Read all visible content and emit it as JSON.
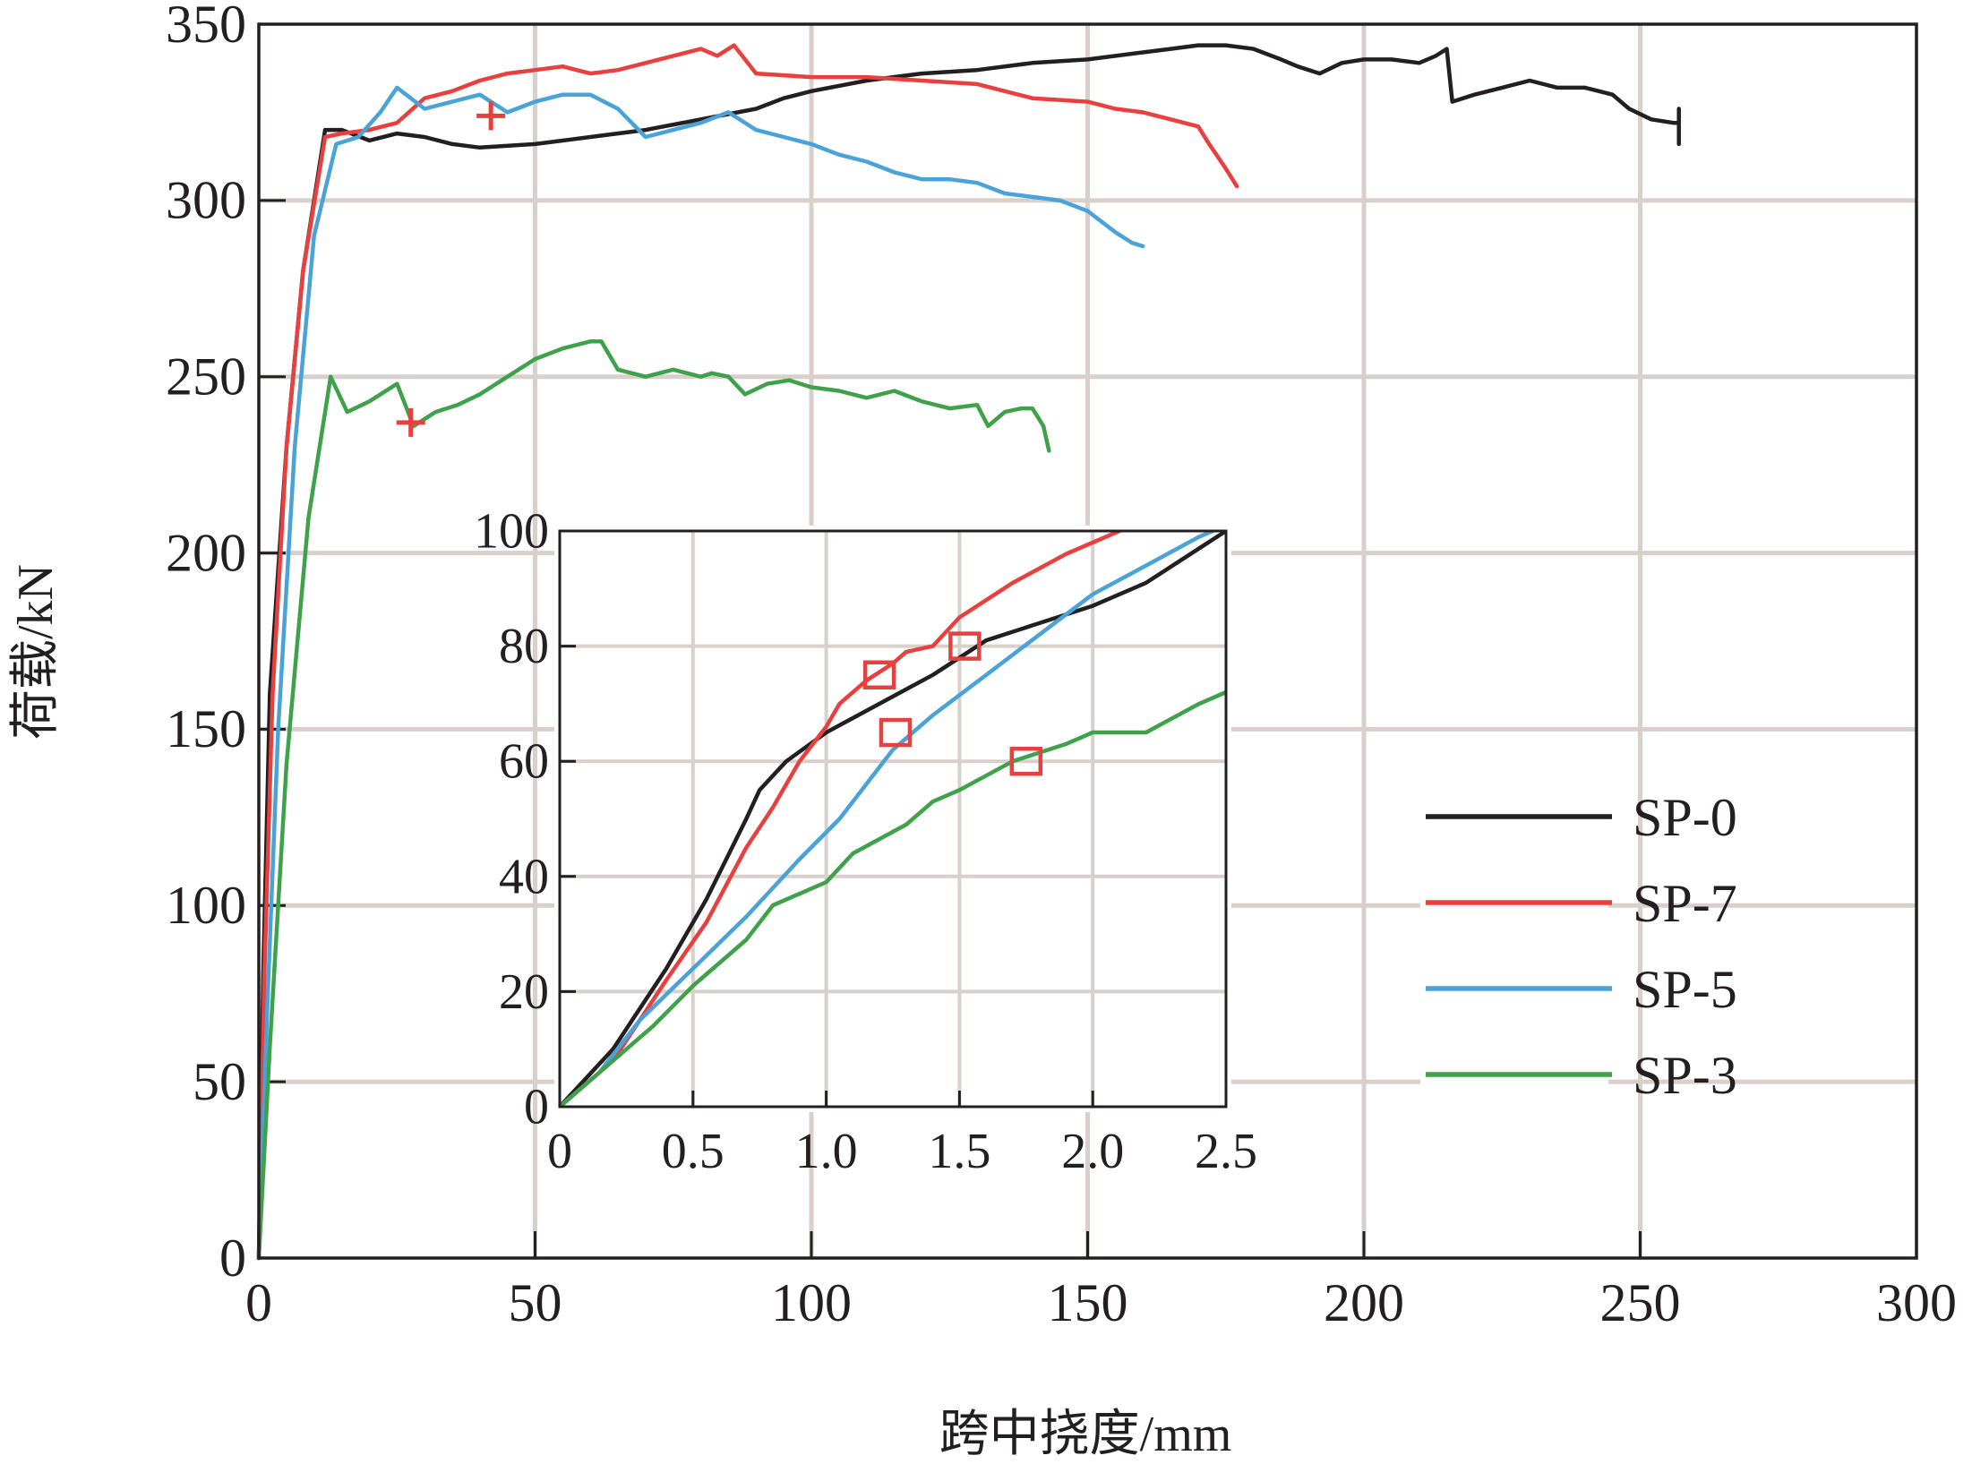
{
  "colors": {
    "SP-0": "#231f20",
    "SP-7": "#e8403f",
    "SP-5": "#4aa3d8",
    "SP-3": "#3fa24a",
    "grid": "#d9d0cc",
    "marker": "#e8403f",
    "axis": "#231f20"
  },
  "chart_data": [
    {
      "type": "line",
      "xlabel": "跨中挠度/mm",
      "ylabel": "荷载/kN",
      "xlim": [
        0,
        300
      ],
      "ylim": [
        0,
        350
      ],
      "xticks": [
        0,
        50,
        100,
        150,
        200,
        250,
        300
      ],
      "yticks": [
        0,
        50,
        100,
        150,
        200,
        250,
        300,
        350
      ],
      "x_tick_labels": [
        "0",
        "50",
        "100",
        "150",
        "200",
        "250",
        "300"
      ],
      "y_tick_labels": [
        "0",
        "50",
        "100",
        "150",
        "200",
        "250",
        "300",
        "350"
      ],
      "grid": true,
      "legend_position": "bottom-right",
      "series": [
        {
          "name": "SP-0",
          "points": [
            [
              0,
              0
            ],
            [
              0.8,
              80
            ],
            [
              2,
              160
            ],
            [
              5,
              230
            ],
            [
              8,
              280
            ],
            [
              12,
              320
            ],
            [
              15,
              320
            ],
            [
              20,
              317
            ],
            [
              25,
              319
            ],
            [
              30,
              318
            ],
            [
              35,
              316
            ],
            [
              40,
              315
            ],
            [
              50,
              316
            ],
            [
              60,
              318
            ],
            [
              70,
              320
            ],
            [
              80,
              323
            ],
            [
              90,
              326
            ],
            [
              95,
              329
            ],
            [
              100,
              331
            ],
            [
              110,
              334
            ],
            [
              120,
              336
            ],
            [
              130,
              337
            ],
            [
              140,
              339
            ],
            [
              150,
              340
            ],
            [
              160,
              342
            ],
            [
              165,
              343
            ],
            [
              170,
              344
            ],
            [
              175,
              344
            ],
            [
              180,
              343
            ],
            [
              185,
              340
            ],
            [
              188,
              338
            ],
            [
              192,
              336
            ],
            [
              196,
              339
            ],
            [
              200,
              340
            ],
            [
              205,
              340
            ],
            [
              210,
              339
            ],
            [
              213,
              341
            ],
            [
              215,
              343
            ],
            [
              216,
              328
            ],
            [
              220,
              330
            ],
            [
              225,
              332
            ],
            [
              230,
              334
            ],
            [
              235,
              332
            ],
            [
              240,
              332
            ],
            [
              245,
              330
            ],
            [
              248,
              326
            ],
            [
              252,
              323
            ],
            [
              256,
              322
            ],
            [
              257,
              322
            ],
            [
              257,
              316
            ],
            [
              257,
              326
            ]
          ]
        },
        {
          "name": "SP-7",
          "points": [
            [
              0,
              0
            ],
            [
              1,
              80
            ],
            [
              2.5,
              160
            ],
            [
              5,
              230
            ],
            [
              8,
              280
            ],
            [
              12,
              318
            ],
            [
              15,
              319
            ],
            [
              20,
              320
            ],
            [
              25,
              322
            ],
            [
              30,
              329
            ],
            [
              35,
              331
            ],
            [
              40,
              334
            ],
            [
              45,
              336
            ],
            [
              50,
              337
            ],
            [
              55,
              338
            ],
            [
              60,
              336
            ],
            [
              65,
              337
            ],
            [
              70,
              339
            ],
            [
              75,
              341
            ],
            [
              80,
              343
            ],
            [
              83,
              341
            ],
            [
              86,
              344
            ],
            [
              90,
              336
            ],
            [
              100,
              335
            ],
            [
              110,
              335
            ],
            [
              120,
              334
            ],
            [
              130,
              333
            ],
            [
              140,
              329
            ],
            [
              150,
              328
            ],
            [
              155,
              326
            ],
            [
              160,
              325
            ],
            [
              165,
              323
            ],
            [
              170,
              321
            ],
            [
              172,
              316
            ],
            [
              175,
              309
            ],
            [
              177,
              304
            ]
          ]
        },
        {
          "name": "SP-5",
          "points": [
            [
              0,
              0
            ],
            [
              1.5,
              70
            ],
            [
              3.5,
              150
            ],
            [
              6.5,
              230
            ],
            [
              10,
              290
            ],
            [
              14,
              316
            ],
            [
              18,
              318
            ],
            [
              22,
              325
            ],
            [
              25,
              332
            ],
            [
              30,
              326
            ],
            [
              35,
              328
            ],
            [
              40,
              330
            ],
            [
              45,
              325
            ],
            [
              50,
              328
            ],
            [
              55,
              330
            ],
            [
              60,
              330
            ],
            [
              65,
              326
            ],
            [
              70,
              318
            ],
            [
              75,
              320
            ],
            [
              80,
              322
            ],
            [
              85,
              325
            ],
            [
              90,
              320
            ],
            [
              95,
              318
            ],
            [
              100,
              316
            ],
            [
              105,
              313
            ],
            [
              110,
              311
            ],
            [
              115,
              308
            ],
            [
              120,
              306
            ],
            [
              125,
              306
            ],
            [
              130,
              305
            ],
            [
              135,
              302
            ],
            [
              140,
              301
            ],
            [
              145,
              300
            ],
            [
              150,
              297
            ],
            [
              155,
              291
            ],
            [
              158,
              288
            ],
            [
              160,
              287
            ]
          ]
        },
        {
          "name": "SP-3",
          "points": [
            [
              0,
              0
            ],
            [
              2,
              60
            ],
            [
              5,
              140
            ],
            [
              9,
              210
            ],
            [
              13,
              250
            ],
            [
              16,
              240
            ],
            [
              20,
              243
            ],
            [
              25,
              248
            ],
            [
              28,
              236
            ],
            [
              32,
              240
            ],
            [
              36,
              242
            ],
            [
              40,
              245
            ],
            [
              45,
              250
            ],
            [
              50,
              255
            ],
            [
              55,
              258
            ],
            [
              60,
              260
            ],
            [
              62,
              260
            ],
            [
              65,
              252
            ],
            [
              70,
              250
            ],
            [
              75,
              252
            ],
            [
              80,
              250
            ],
            [
              82,
              251
            ],
            [
              85,
              250
            ],
            [
              88,
              245
            ],
            [
              92,
              248
            ],
            [
              96,
              249
            ],
            [
              100,
              247
            ],
            [
              105,
              246
            ],
            [
              110,
              244
            ],
            [
              115,
              246
            ],
            [
              120,
              243
            ],
            [
              125,
              241
            ],
            [
              130,
              242
            ],
            [
              132,
              236
            ],
            [
              135,
              240
            ],
            [
              138,
              241
            ],
            [
              140,
              241
            ],
            [
              142,
              236
            ],
            [
              143,
              229
            ]
          ]
        }
      ],
      "markers": [
        {
          "symbol": "plus",
          "x": 42,
          "y": 324
        },
        {
          "symbol": "plus",
          "x": 27.5,
          "y": 237
        }
      ]
    },
    {
      "type": "line",
      "role": "inset",
      "xlim": [
        0,
        2.5
      ],
      "ylim": [
        0,
        100
      ],
      "xticks": [
        0,
        0.5,
        1.0,
        1.5,
        2.0,
        2.5
      ],
      "yticks": [
        0,
        20,
        40,
        60,
        80,
        100
      ],
      "x_tick_labels": [
        "0",
        "0.5",
        "1.0",
        "1.5",
        "2.0",
        "2.5"
      ],
      "y_tick_labels": [
        "0",
        "20",
        "40",
        "60",
        "80",
        "100"
      ],
      "grid": true,
      "series": [
        {
          "name": "SP-0",
          "points": [
            [
              0,
              0
            ],
            [
              0.2,
              10
            ],
            [
              0.4,
              24
            ],
            [
              0.55,
              36
            ],
            [
              0.7,
              50
            ],
            [
              0.75,
              55
            ],
            [
              0.85,
              60
            ],
            [
              1.0,
              65
            ],
            [
              1.2,
              70
            ],
            [
              1.4,
              75
            ],
            [
              1.6,
              81
            ],
            [
              1.8,
              84
            ],
            [
              2.0,
              87
            ],
            [
              2.2,
              91
            ],
            [
              2.4,
              97
            ],
            [
              2.5,
              100
            ]
          ]
        },
        {
          "name": "SP-7",
          "points": [
            [
              0,
              0
            ],
            [
              0.2,
              8
            ],
            [
              0.4,
              22
            ],
            [
              0.55,
              32
            ],
            [
              0.7,
              45
            ],
            [
              0.8,
              52
            ],
            [
              0.9,
              60
            ],
            [
              1.0,
              66
            ],
            [
              1.05,
              70
            ],
            [
              1.15,
              74
            ],
            [
              1.25,
              77
            ],
            [
              1.3,
              79
            ],
            [
              1.4,
              80
            ],
            [
              1.5,
              85
            ],
            [
              1.7,
              91
            ],
            [
              1.9,
              96
            ],
            [
              2.1,
              100
            ]
          ]
        },
        {
          "name": "SP-5",
          "points": [
            [
              0,
              0
            ],
            [
              0.15,
              6
            ],
            [
              0.3,
              15
            ],
            [
              0.5,
              24
            ],
            [
              0.7,
              33
            ],
            [
              0.9,
              43
            ],
            [
              1.05,
              50
            ],
            [
              1.25,
              62
            ],
            [
              1.4,
              68
            ],
            [
              1.6,
              75
            ],
            [
              1.8,
              82
            ],
            [
              2.0,
              89
            ],
            [
              2.2,
              94
            ],
            [
              2.4,
              99
            ],
            [
              2.45,
              100
            ]
          ]
        },
        {
          "name": "SP-3",
          "points": [
            [
              0,
              0
            ],
            [
              0.1,
              4
            ],
            [
              0.2,
              8
            ],
            [
              0.35,
              14
            ],
            [
              0.5,
              21
            ],
            [
              0.7,
              29
            ],
            [
              0.8,
              35
            ],
            [
              1.0,
              39
            ],
            [
              1.1,
              44
            ],
            [
              1.3,
              49
            ],
            [
              1.4,
              53
            ],
            [
              1.5,
              55
            ],
            [
              1.7,
              60
            ],
            [
              1.9,
              63
            ],
            [
              2.0,
              65
            ],
            [
              2.2,
              65
            ],
            [
              2.4,
              70
            ],
            [
              2.5,
              72
            ]
          ]
        }
      ],
      "markers": [
        {
          "symbol": "square",
          "x": 1.2,
          "y": 75
        },
        {
          "symbol": "square",
          "x": 1.52,
          "y": 80
        },
        {
          "symbol": "square",
          "x": 1.26,
          "y": 65
        },
        {
          "symbol": "square",
          "x": 1.75,
          "y": 60
        }
      ]
    }
  ]
}
